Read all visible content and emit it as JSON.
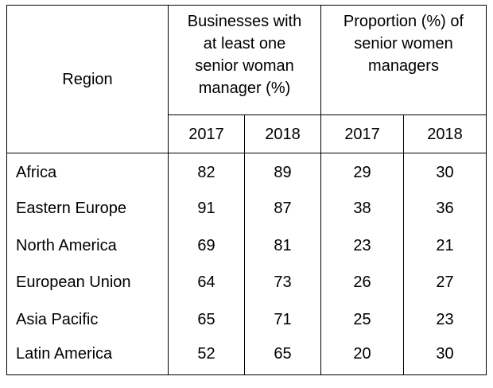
{
  "table": {
    "region_header": "Region",
    "groups": [
      "Businesses with at least one senior woman manager (%)",
      "Proportion (%) of senior women managers"
    ],
    "group_lines": [
      [
        "Businesses with",
        "at least one",
        "senior woman",
        "manager (%)"
      ],
      [
        "Proportion (%) of",
        "senior women",
        "managers"
      ]
    ],
    "years": [
      "2017",
      "2018",
      "2017",
      "2018"
    ],
    "rows": [
      {
        "region": "Africa",
        "values": [
          "82",
          "89",
          "29",
          "30"
        ]
      },
      {
        "region": "Eastern Europe",
        "values": [
          "91",
          "87",
          "38",
          "36"
        ]
      },
      {
        "region": "North America",
        "values": [
          "69",
          "81",
          "23",
          "21"
        ]
      },
      {
        "region": "European Union",
        "values": [
          "64",
          "73",
          "26",
          "27"
        ]
      },
      {
        "region": "Asia Pacific",
        "values": [
          "65",
          "71",
          "25",
          "23"
        ]
      },
      {
        "region": "Latin America",
        "values": [
          "52",
          "65",
          "20",
          "30"
        ]
      }
    ]
  }
}
